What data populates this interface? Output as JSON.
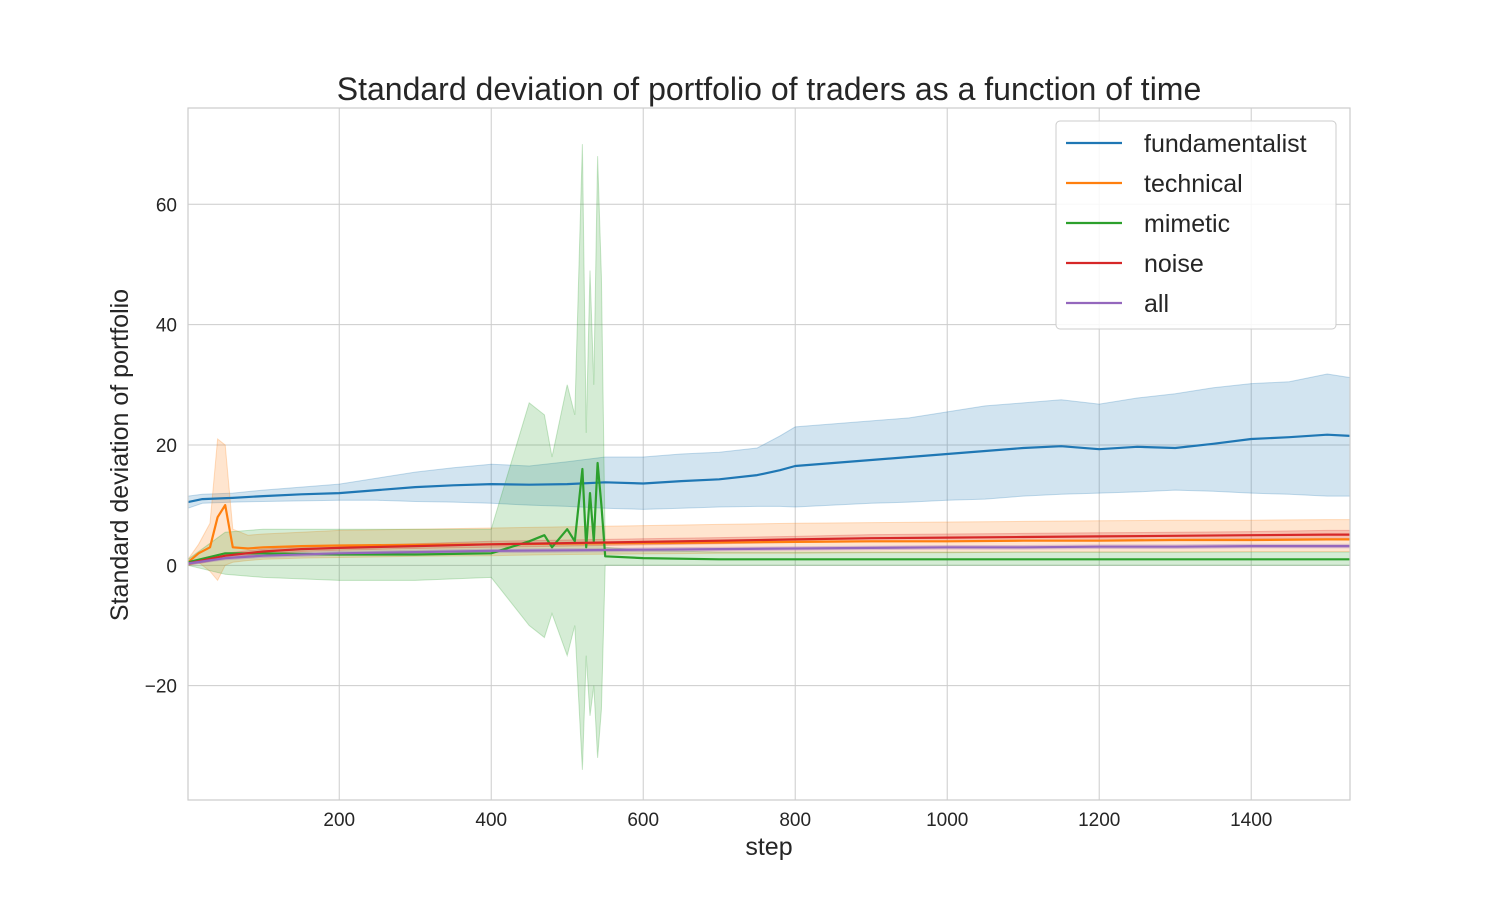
{
  "chart_data": {
    "type": "line",
    "title": "Standard deviation of portfolio of traders as a function of time",
    "xlabel": "step",
    "ylabel": "Standard deviation of portfolio",
    "xlim": [
      1,
      1530
    ],
    "ylim": [
      -39,
      76
    ],
    "xticks": [
      200,
      400,
      600,
      800,
      1000,
      1200,
      1400
    ],
    "yticks": [
      -20,
      0,
      20,
      40,
      60
    ],
    "ytick_labels": [
      "−20",
      "0",
      "20",
      "40",
      "60"
    ],
    "grid": true,
    "legend_position": "top-right",
    "series": [
      {
        "name": "fundamentalist",
        "color": "#1f77b4",
        "x": [
          1,
          20,
          60,
          100,
          150,
          200,
          250,
          300,
          350,
          400,
          450,
          500,
          550,
          600,
          650,
          700,
          750,
          780,
          800,
          850,
          900,
          950,
          1000,
          1050,
          1100,
          1150,
          1200,
          1250,
          1300,
          1350,
          1400,
          1450,
          1500,
          1530
        ],
        "mean": [
          10.5,
          11.0,
          11.2,
          11.5,
          11.8,
          12.0,
          12.5,
          13.0,
          13.3,
          13.5,
          13.4,
          13.5,
          13.8,
          13.6,
          14.0,
          14.3,
          15.0,
          15.8,
          16.5,
          17.0,
          17.5,
          18.0,
          18.5,
          19.0,
          19.5,
          19.8,
          19.3,
          19.7,
          19.5,
          20.2,
          21.0,
          21.3,
          21.7,
          21.5
        ],
        "lower": [
          9.5,
          10.3,
          10.5,
          10.6,
          10.7,
          10.8,
          10.8,
          10.6,
          10.5,
          10.3,
          10.0,
          9.8,
          9.5,
          9.3,
          9.5,
          9.7,
          9.8,
          9.8,
          9.7,
          10.0,
          10.3,
          10.5,
          10.8,
          11.0,
          11.5,
          11.8,
          12.0,
          12.2,
          12.5,
          12.3,
          12.0,
          11.8,
          11.5,
          11.5
        ],
        "upper": [
          11.5,
          11.8,
          12.0,
          12.5,
          13.0,
          13.5,
          14.5,
          15.5,
          16.2,
          16.8,
          16.5,
          17.2,
          18.0,
          18.0,
          18.5,
          18.8,
          19.5,
          21.5,
          23.0,
          23.5,
          24.0,
          24.5,
          25.5,
          26.5,
          27.0,
          27.5,
          26.8,
          27.8,
          28.5,
          29.5,
          30.2,
          30.5,
          31.8,
          31.2
        ]
      },
      {
        "name": "technical",
        "color": "#ff7f0e",
        "x": [
          1,
          15,
          30,
          40,
          50,
          60,
          80,
          100,
          150,
          200,
          300,
          400,
          500,
          600,
          700,
          800,
          900,
          1000,
          1100,
          1200,
          1300,
          1400,
          1500,
          1530
        ],
        "mean": [
          0.5,
          2.0,
          3.0,
          8.0,
          10.0,
          3.0,
          2.8,
          3.0,
          3.2,
          3.3,
          3.4,
          3.5,
          3.6,
          3.7,
          3.8,
          3.9,
          4.0,
          4.0,
          4.1,
          4.1,
          4.2,
          4.2,
          4.3,
          4.3
        ],
        "lower": [
          0.0,
          0.5,
          -1.0,
          -2.5,
          0.0,
          0.5,
          0.8,
          1.0,
          1.2,
          1.3,
          1.5,
          1.6,
          1.8,
          1.9,
          2.0,
          2.0,
          2.1,
          2.1,
          2.2,
          2.2,
          2.2,
          2.3,
          2.3,
          2.3
        ],
        "upper": [
          1.0,
          3.5,
          7.0,
          21.0,
          20.0,
          6.0,
          5.0,
          5.2,
          5.5,
          5.8,
          6.0,
          6.2,
          6.4,
          6.6,
          6.8,
          7.0,
          7.1,
          7.2,
          7.3,
          7.4,
          7.5,
          7.5,
          7.6,
          7.6
        ]
      },
      {
        "name": "mimetic",
        "color": "#2ca02c",
        "x": [
          1,
          50,
          100,
          200,
          300,
          400,
          450,
          470,
          480,
          500,
          510,
          520,
          525,
          530,
          535,
          540,
          545,
          550,
          600,
          700,
          800,
          900,
          1000,
          1100,
          1200,
          1300,
          1400,
          1500,
          1530
        ],
        "mean": [
          0.5,
          2.0,
          2.0,
          1.8,
          1.8,
          2.0,
          4.0,
          5.0,
          3.0,
          6.0,
          4.0,
          16.0,
          3.0,
          12.0,
          4.0,
          17.0,
          10.0,
          1.5,
          1.2,
          1.0,
          1.0,
          1.0,
          1.0,
          1.0,
          1.0,
          1.0,
          1.0,
          1.0,
          1.0
        ],
        "lower": [
          0.0,
          -1.5,
          -2.0,
          -2.5,
          -2.5,
          -2.0,
          -10.0,
          -12.0,
          -8.0,
          -15.0,
          -10.0,
          -34.0,
          -15.0,
          -25.0,
          -20.0,
          -32.0,
          -24.0,
          0.0,
          0.0,
          0.0,
          0.0,
          0.0,
          0.0,
          0.0,
          0.0,
          0.0,
          0.0,
          0.0,
          0.0
        ],
        "upper": [
          1.0,
          5.5,
          6.0,
          6.0,
          6.0,
          6.0,
          27.0,
          25.0,
          18.0,
          30.0,
          25.0,
          70.0,
          22.0,
          49.0,
          30.0,
          68.0,
          48.0,
          3.0,
          2.5,
          2.2,
          2.2,
          2.2,
          2.2,
          2.2,
          2.2,
          2.2,
          2.2,
          2.2,
          2.2
        ]
      },
      {
        "name": "noise",
        "color": "#d62728",
        "x": [
          1,
          20,
          50,
          100,
          150,
          200,
          300,
          400,
          500,
          600,
          700,
          800,
          900,
          1000,
          1100,
          1200,
          1300,
          1400,
          1500,
          1530
        ],
        "mean": [
          0.3,
          0.8,
          1.6,
          2.3,
          2.7,
          2.9,
          3.2,
          3.5,
          3.7,
          3.9,
          4.1,
          4.3,
          4.5,
          4.6,
          4.7,
          4.8,
          4.9,
          5.0,
          5.1,
          5.1
        ],
        "lower": [
          0.0,
          0.4,
          1.2,
          1.9,
          2.3,
          2.5,
          2.8,
          3.0,
          3.2,
          3.4,
          3.6,
          3.8,
          3.9,
          4.0,
          4.1,
          4.2,
          4.3,
          4.4,
          4.4,
          4.4
        ],
        "upper": [
          0.6,
          1.2,
          2.0,
          2.7,
          3.1,
          3.3,
          3.6,
          4.0,
          4.2,
          4.4,
          4.6,
          4.8,
          5.1,
          5.2,
          5.3,
          5.4,
          5.5,
          5.6,
          5.8,
          5.8
        ]
      },
      {
        "name": "all",
        "color": "#9467bd",
        "x": [
          1,
          50,
          100,
          200,
          300,
          400,
          500,
          600,
          700,
          800,
          900,
          1000,
          1100,
          1200,
          1300,
          1400,
          1500,
          1530
        ],
        "mean": [
          0.3,
          1.2,
          1.6,
          2.0,
          2.2,
          2.4,
          2.5,
          2.6,
          2.7,
          2.8,
          2.9,
          3.0,
          3.0,
          3.1,
          3.1,
          3.2,
          3.2,
          3.2
        ],
        "lower": [
          0.1,
          0.9,
          1.3,
          1.7,
          1.9,
          2.1,
          2.2,
          2.3,
          2.4,
          2.5,
          2.6,
          2.7,
          2.7,
          2.8,
          2.8,
          2.9,
          2.9,
          2.9
        ],
        "upper": [
          0.5,
          1.5,
          1.9,
          2.3,
          2.5,
          2.7,
          2.8,
          2.9,
          3.0,
          3.1,
          3.2,
          3.3,
          3.3,
          3.4,
          3.4,
          3.5,
          3.5,
          3.5
        ]
      }
    ]
  }
}
